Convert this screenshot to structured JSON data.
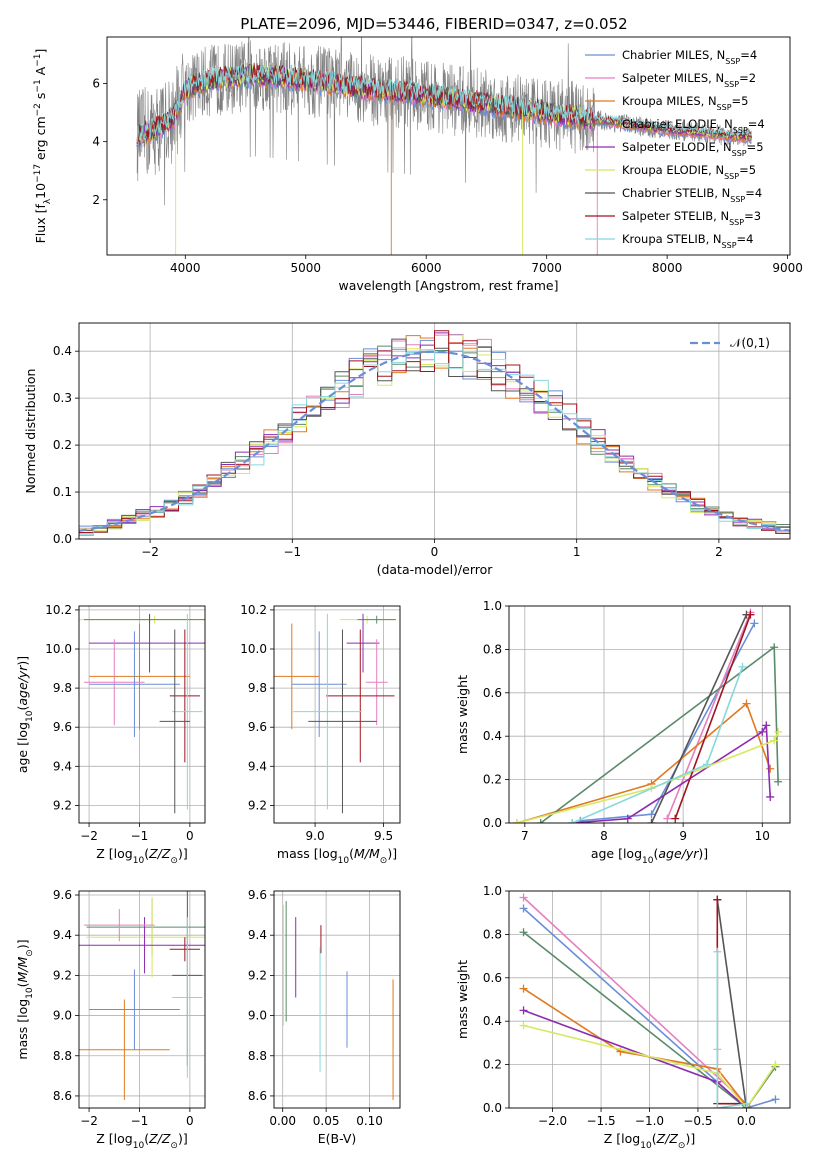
{
  "figure": {
    "title": "PLATE=2096, MJD=53446, FIBERID=0347, z=0.052"
  },
  "palette": {
    "Chabrier MILES": "#6a8fd8",
    "Salpeter MILES": "#e67fbf",
    "Kroupa MILES": "#e07a20",
    "Chabrier ELODIE": "#5a8a6a",
    "Salpeter ELODIE": "#8e2cb0",
    "Kroupa ELODIE": "#d8e860",
    "Chabrier STELIB": "#555555",
    "Salpeter STELIB": "#a01420",
    "Kroupa STELIB": "#88d8dc",
    "data": "#808080",
    "normal_curve": "#6a8fd8",
    "grid": "#b0b0b0"
  },
  "chart_data": [
    {
      "id": "spectrum",
      "type": "line",
      "xlabel": "wavelength [Angstrom, rest frame]",
      "ylabel": "Flux [f_λ 10^-17 erg cm^-2 s^-1 A^-1]",
      "xlim": [
        3350,
        9020
      ],
      "ylim": [
        0.1,
        7.6
      ],
      "xticks": [
        4000,
        5000,
        6000,
        7000,
        8000,
        9000
      ],
      "yticks": [
        2,
        4,
        6
      ],
      "grid": false,
      "legend_position": "upper-right",
      "data_series": {
        "name": "",
        "x_range": [
          3600,
          8700
        ],
        "color": "data"
      },
      "model_continuum": {
        "x": [
          3600,
          3750,
          3900,
          4000,
          4200,
          4400,
          4600,
          4800,
          5000,
          5200,
          5500,
          5800,
          6000,
          6300,
          6500,
          6800,
          7000,
          7300,
          7500,
          7800,
          8000,
          8300,
          8500,
          8700
        ],
        "y": [
          4.2,
          4.4,
          4.8,
          5.8,
          6.1,
          6.2,
          6.3,
          6.2,
          6.1,
          6.0,
          5.8,
          5.7,
          5.6,
          5.4,
          5.3,
          5.1,
          5.0,
          4.8,
          4.7,
          4.5,
          4.4,
          4.3,
          4.2,
          4.15
        ]
      },
      "legend": [
        {
          "name": "Chabrier MILES",
          "nssp": "4",
          "color": "Chabrier MILES"
        },
        {
          "name": "Salpeter MILES",
          "nssp": "2",
          "color": "Salpeter MILES"
        },
        {
          "name": "Kroupa MILES",
          "nssp": "5",
          "color": "Kroupa MILES"
        },
        {
          "name": "Chabrier ELODIE",
          "nssp": "4",
          "color": "Chabrier ELODIE"
        },
        {
          "name": "Salpeter ELODIE",
          "nssp": "5",
          "color": "Salpeter ELODIE"
        },
        {
          "name": "Kroupa ELODIE",
          "nssp": "5",
          "color": "Kroupa ELODIE"
        },
        {
          "name": "Chabrier STELIB",
          "nssp": "4",
          "color": "Chabrier STELIB"
        },
        {
          "name": "Salpeter STELIB",
          "nssp": "3",
          "color": "Salpeter STELIB"
        },
        {
          "name": "Kroupa STELIB",
          "nssp": "4",
          "color": "Kroupa STELIB"
        }
      ]
    },
    {
      "id": "residuals",
      "type": "line",
      "xlabel": "(data-model)/error",
      "ylabel": "Normed distribution",
      "xlim": [
        -2.5,
        2.5
      ],
      "ylim": [
        0.0,
        0.46
      ],
      "xticks": [
        -2,
        -1,
        0,
        1,
        2
      ],
      "yticks": [
        0.0,
        0.1,
        0.2,
        0.3,
        0.4
      ],
      "grid": true,
      "legend_position": "upper-right",
      "curve": {
        "name": "𝒩(0,1)",
        "mu": 0,
        "sigma": 1
      },
      "bin_width": 0.1
    },
    {
      "id": "age_vs_Z",
      "type": "scatter",
      "xlabel": "Z [log10(Z/Z⊙)]",
      "ylabel": "age  [log10(age/yr)]",
      "xlim": [
        -2.2,
        0.3
      ],
      "ylim": [
        9.11,
        10.22
      ],
      "xticks": [
        -2,
        -1,
        0
      ],
      "yticks": [
        9.2,
        9.4,
        9.6,
        9.8,
        10.0,
        10.2
      ],
      "grid": true,
      "errorbars": [
        {
          "series": "Kroupa ELODIE",
          "x": -0.7,
          "xerr": 1.6,
          "y": 10.15,
          "yerr": 0.02
        },
        {
          "series": "Chabrier ELODIE",
          "x": -0.8,
          "xerr": 1.3,
          "y": 10.15,
          "yerr": 0.02
        },
        {
          "series": "Salpeter ELODIE",
          "x": -0.8,
          "xerr": 1.2,
          "y": 10.03,
          "yerr": 0.15
        },
        {
          "series": "Kroupa MILES",
          "x": -1.0,
          "xerr": 1.0,
          "y": 9.86,
          "yerr": 0.27
        },
        {
          "series": "Salpeter MILES",
          "x": -1.5,
          "xerr": 0.6,
          "y": 9.83,
          "yerr": 0.22
        },
        {
          "series": "Chabrier MILES",
          "x": -1.1,
          "xerr": 0.9,
          "y": 9.82,
          "yerr": 0.27
        },
        {
          "series": "Salpeter STELIB",
          "x": -0.1,
          "xerr": 0.3,
          "y": 9.76,
          "yerr": 0.34
        },
        {
          "series": "Kroupa STELIB",
          "x": -0.05,
          "xerr": 0.3,
          "y": 9.68,
          "yerr": 0.5
        },
        {
          "series": "Chabrier STELIB",
          "x": -0.3,
          "xerr": 0.3,
          "y": 9.63,
          "yerr": 0.47
        }
      ]
    },
    {
      "id": "age_vs_mass",
      "type": "scatter",
      "xlabel": "mass [log10(M/M⊙)]",
      "ylabel": "",
      "xlim": [
        8.7,
        9.62
      ],
      "ylim": [
        9.11,
        10.22
      ],
      "xticks": [
        9.0,
        9.5
      ],
      "yticks": [
        9.2,
        9.4,
        9.6,
        9.8,
        10.0,
        10.2
      ],
      "grid": true,
      "errorbars": [
        {
          "series": "Kroupa ELODIE",
          "x": 9.38,
          "xerr": 0.2,
          "y": 10.15,
          "yerr": 0.02
        },
        {
          "series": "Chabrier ELODIE",
          "x": 9.45,
          "xerr": 0.14,
          "y": 10.15,
          "yerr": 0.02
        },
        {
          "series": "Salpeter ELODIE",
          "x": 9.35,
          "xerr": 0.12,
          "y": 10.03,
          "yerr": 0.15
        },
        {
          "series": "Kroupa MILES",
          "x": 8.83,
          "xerr": 0.2,
          "y": 9.86,
          "yerr": 0.27
        },
        {
          "series": "Salpeter MILES",
          "x": 9.45,
          "xerr": 0.08,
          "y": 9.83,
          "yerr": 0.22
        },
        {
          "series": "Chabrier MILES",
          "x": 9.03,
          "xerr": 0.2,
          "y": 9.82,
          "yerr": 0.27
        },
        {
          "series": "Salpeter STELIB",
          "x": 9.33,
          "xerr": 0.25,
          "y": 9.76,
          "yerr": 0.34
        },
        {
          "series": "Kroupa STELIB",
          "x": 9.09,
          "xerr": 0.25,
          "y": 9.68,
          "yerr": 0.5
        },
        {
          "series": "Chabrier STELIB",
          "x": 9.2,
          "xerr": 0.25,
          "y": 9.63,
          "yerr": 0.47
        }
      ]
    },
    {
      "id": "massweight_vs_age",
      "type": "line",
      "xlabel": "age  [log10(age/yr)]",
      "ylabel": "mass weight",
      "xlim": [
        6.8,
        10.35
      ],
      "ylim": [
        0.0,
        1.0
      ],
      "xticks": [
        7,
        8,
        9,
        10
      ],
      "yticks": [
        0.0,
        0.2,
        0.4,
        0.6,
        0.8,
        1.0
      ],
      "grid": true,
      "series": [
        {
          "name": "Chabrier MILES",
          "x": [
            7.7,
            8.6,
            9.9
          ],
          "y": [
            0.01,
            0.04,
            0.92
          ]
        },
        {
          "name": "Salpeter MILES",
          "x": [
            8.8,
            9.85
          ],
          "y": [
            0.02,
            0.97
          ]
        },
        {
          "name": "Kroupa MILES",
          "x": [
            6.9,
            8.6,
            9.8,
            10.1
          ],
          "y": [
            0.0,
            0.18,
            0.55,
            0.25
          ]
        },
        {
          "name": "Chabrier ELODIE",
          "x": [
            7.2,
            10.15,
            10.2
          ],
          "y": [
            0.0,
            0.81,
            0.19
          ]
        },
        {
          "name": "Salpeter ELODIE",
          "x": [
            7.6,
            8.3,
            10.0,
            10.05,
            10.1
          ],
          "y": [
            0.0,
            0.02,
            0.42,
            0.45,
            0.12
          ]
        },
        {
          "name": "Kroupa ELODIE",
          "x": [
            6.9,
            8.6,
            10.15,
            10.2
          ],
          "y": [
            0.0,
            0.16,
            0.38,
            0.42
          ]
        },
        {
          "name": "Chabrier STELIB",
          "x": [
            8.6,
            9.8
          ],
          "y": [
            0.0,
            0.96
          ]
        },
        {
          "name": "Salpeter STELIB",
          "x": [
            8.9,
            9.85
          ],
          "y": [
            0.02,
            0.96
          ]
        },
        {
          "name": "Kroupa STELIB",
          "x": [
            7.6,
            9.3,
            9.75
          ],
          "y": [
            0.0,
            0.27,
            0.72
          ]
        }
      ]
    },
    {
      "id": "mass_vs_Z",
      "type": "scatter",
      "xlabel": "Z [log10(Z/Z⊙)]",
      "ylabel": "mass [log10(M/M⊙)]",
      "xlim": [
        -2.2,
        0.3
      ],
      "ylim": [
        8.54,
        9.62
      ],
      "xticks": [
        -2,
        -1,
        0
      ],
      "yticks": [
        8.6,
        8.8,
        9.0,
        9.2,
        9.4,
        9.6
      ],
      "grid": true,
      "errorbars": [
        {
          "series": "Chabrier ELODIE",
          "x": -0.75,
          "xerr": 1.3,
          "y": 9.44,
          "yerr": 0.14
        },
        {
          "series": "Kroupa ELODIE",
          "x": -0.75,
          "xerr": 1.3,
          "y": 9.39,
          "yerr": 0.2
        },
        {
          "series": "Salpeter ELODIE",
          "x": -0.9,
          "xerr": 1.3,
          "y": 9.35,
          "yerr": 0.14
        },
        {
          "series": "Salpeter MILES",
          "x": -1.4,
          "xerr": 0.7,
          "y": 9.45,
          "yerr": 0.08
        },
        {
          "series": "Salpeter STELIB",
          "x": -0.1,
          "xerr": 0.3,
          "y": 9.33,
          "yerr": 0.06
        },
        {
          "series": "Chabrier STELIB",
          "x": -0.05,
          "xerr": 0.3,
          "y": 9.2,
          "yerr": 0.45
        },
        {
          "series": "Kroupa STELIB",
          "x": -0.05,
          "xerr": 0.3,
          "y": 9.09,
          "yerr": 0.4
        },
        {
          "series": "Chabrier MILES",
          "x": -1.1,
          "xerr": 0.9,
          "y": 9.03,
          "yerr": 0.2
        },
        {
          "series": "Kroupa MILES",
          "x": -1.3,
          "xerr": 0.9,
          "y": 8.83,
          "yerr": 0.25
        }
      ]
    },
    {
      "id": "mass_vs_ebv",
      "type": "scatter",
      "xlabel": "E(B-V)",
      "ylabel": "",
      "xlim": [
        -0.01,
        0.135
      ],
      "ylim": [
        8.54,
        9.62
      ],
      "xticks": [
        0.0,
        0.05,
        0.1
      ],
      "yticks": [
        8.6,
        8.8,
        9.0,
        9.2,
        9.4,
        9.6
      ],
      "grid": true,
      "errorbars": [
        {
          "series": "Kroupa ELODIE",
          "x": 0.001,
          "xerr": 0.0,
          "y": 9.25,
          "yerr": 0.3
        },
        {
          "series": "Chabrier ELODIE",
          "x": 0.004,
          "xerr": 0.0,
          "y": 9.27,
          "yerr": 0.3
        },
        {
          "series": "Salpeter ELODIE",
          "x": 0.015,
          "xerr": 0.0,
          "y": 9.29,
          "yerr": 0.2
        },
        {
          "series": "Salpeter STELIB",
          "x": 0.044,
          "xerr": 0.0,
          "y": 9.38,
          "yerr": 0.07
        },
        {
          "series": "Kroupa STELIB",
          "x": 0.043,
          "xerr": 0.0,
          "y": 9.03,
          "yerr": 0.31
        },
        {
          "series": "Chabrier MILES",
          "x": 0.074,
          "xerr": 0.0,
          "y": 9.03,
          "yerr": 0.19
        },
        {
          "series": "Kroupa MILES",
          "x": 0.127,
          "xerr": 0.0,
          "y": 8.88,
          "yerr": 0.3
        }
      ]
    },
    {
      "id": "massweight_vs_Z",
      "type": "line",
      "xlabel": "Z [log10(Z/Z⊙)]",
      "ylabel": "mass weight",
      "xlim": [
        -2.45,
        0.45
      ],
      "ylim": [
        0.0,
        1.0
      ],
      "xticks": [
        -2.0,
        -1.5,
        -1.0,
        -0.5,
        0.0
      ],
      "yticks": [
        0.0,
        0.2,
        0.4,
        0.6,
        0.8,
        1.0
      ],
      "grid": true,
      "series": [
        {
          "name": "Chabrier MILES",
          "x": [
            -2.3,
            0.0,
            0.3
          ],
          "y": [
            0.92,
            0.0,
            0.04
          ]
        },
        {
          "name": "Salpeter MILES",
          "x": [
            -2.3,
            0.0
          ],
          "y": [
            0.97,
            0.02
          ]
        },
        {
          "name": "Kroupa MILES",
          "x": [
            -2.3,
            -1.3,
            -0.3,
            0.0
          ],
          "y": [
            0.55,
            0.26,
            0.18,
            0.01
          ]
        },
        {
          "name": "Chabrier ELODIE",
          "x": [
            -2.3,
            0.0,
            0.3
          ],
          "y": [
            0.81,
            0.0,
            0.19
          ]
        },
        {
          "name": "Salpeter ELODIE",
          "x": [
            -2.3,
            -0.3,
            0.0
          ],
          "y": [
            0.45,
            0.12,
            0.0
          ]
        },
        {
          "name": "Kroupa ELODIE",
          "x": [
            -2.3,
            -0.3,
            0.0,
            0.3
          ],
          "y": [
            0.38,
            0.16,
            0.0,
            0.2
          ]
        },
        {
          "name": "Chabrier STELIB",
          "x": [
            -0.3,
            0.0
          ],
          "y": [
            0.96,
            0.0
          ]
        },
        {
          "name": "Salpeter STELIB",
          "x": [
            -0.3,
            -0.3,
            0.0
          ],
          "y": [
            0.96,
            0.02,
            0.02
          ]
        },
        {
          "name": "Kroupa STELIB",
          "x": [
            -0.3,
            -0.3,
            -0.3,
            0.0
          ],
          "y": [
            0.72,
            0.27,
            0.0,
            0.02
          ]
        }
      ]
    }
  ]
}
